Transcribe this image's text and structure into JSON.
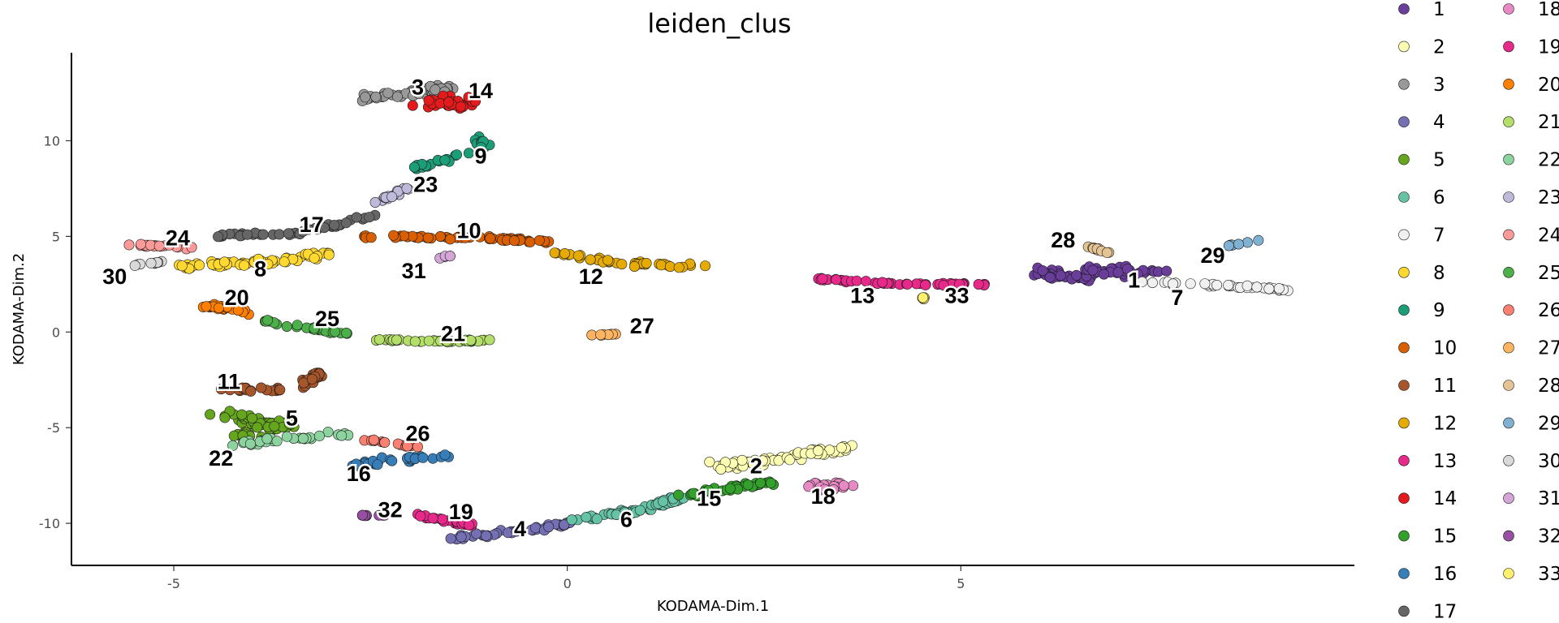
{
  "chart_data": {
    "type": "scatter",
    "title": "leiden_clus",
    "xlabel": "KODAMA-Dim.1",
    "ylabel": "KODAMA-Dim.2",
    "xlim": [
      -6.3,
      10.0
    ],
    "ylim": [
      -12.2,
      14.6
    ],
    "x_ticks": [
      -5,
      0,
      5
    ],
    "x_tick_labels": [
      "-5",
      "0",
      "5"
    ],
    "y_ticks": [
      -10,
      -5,
      0,
      5,
      10
    ],
    "y_tick_labels": [
      "-10",
      "-5",
      "0",
      "5",
      "10"
    ],
    "grid": false,
    "legend_position": "right",
    "clusters": [
      {
        "name": "1",
        "color": "#6a3d9a",
        "label_pos": [
          7.2,
          2.7
        ],
        "segments": [
          [
            6.0,
            3.1,
            6.6,
            2.8
          ],
          [
            6.6,
            3.2,
            7.5,
            3.2
          ]
        ],
        "spread": 0.35,
        "count": 80
      },
      {
        "name": "2",
        "color": "#ffffb3",
        "label_pos": [
          2.4,
          -7.0
        ],
        "segments": [
          [
            1.9,
            -7.0,
            2.8,
            -6.6
          ],
          [
            2.8,
            -6.6,
            3.6,
            -6.0
          ]
        ],
        "spread": 0.35,
        "count": 60
      },
      {
        "name": "3",
        "color": "#999999",
        "label_pos": [
          -1.9,
          12.8
        ],
        "segments": [
          [
            -2.6,
            12.2,
            -1.7,
            12.6
          ],
          [
            -1.7,
            12.6,
            -1.5,
            12.7
          ]
        ],
        "spread": 0.35,
        "count": 55
      },
      {
        "name": "4",
        "color": "#7570b3",
        "label_pos": [
          -0.6,
          -10.3
        ],
        "segments": [
          [
            -1.5,
            -10.8,
            -0.6,
            -10.4
          ],
          [
            -0.6,
            -10.4,
            0.1,
            -10.0
          ]
        ],
        "spread": 0.2,
        "count": 45
      },
      {
        "name": "5",
        "color": "#66a61e",
        "label_pos": [
          -3.5,
          -4.5
        ],
        "segments": [
          [
            -4.4,
            -4.2,
            -3.6,
            -5.0
          ],
          [
            -4.2,
            -5.5,
            -3.4,
            -4.6
          ]
        ],
        "spread": 0.35,
        "count": 60
      },
      {
        "name": "6",
        "color": "#66c2a5",
        "label_pos": [
          0.75,
          -9.8
        ],
        "segments": [
          [
            0.1,
            -9.8,
            0.9,
            -9.3
          ],
          [
            0.9,
            -9.3,
            1.5,
            -8.6
          ]
        ],
        "spread": 0.25,
        "count": 50
      },
      {
        "name": "7",
        "color": "#f0f0f0",
        "label_pos": [
          7.75,
          1.8
        ],
        "segments": [
          [
            7.3,
            2.6,
            8.5,
            2.4
          ],
          [
            8.5,
            2.4,
            9.1,
            2.2
          ]
        ],
        "spread": 0.12,
        "count": 35
      },
      {
        "name": "8",
        "color": "#ffd92f",
        "label_pos": [
          -3.9,
          3.3
        ],
        "segments": [
          [
            -4.9,
            3.4,
            -4.0,
            3.6
          ],
          [
            -4.0,
            3.6,
            -3.0,
            4.1
          ]
        ],
        "spread": 0.3,
        "count": 60
      },
      {
        "name": "9",
        "color": "#1b9e77",
        "label_pos": [
          -1.1,
          9.2
        ],
        "segments": [
          [
            -1.9,
            8.6,
            -1.1,
            9.6
          ],
          [
            -1.1,
            9.6,
            -1.1,
            10.2
          ]
        ],
        "spread": 0.25,
        "count": 35
      },
      {
        "name": "10",
        "color": "#d95f02",
        "label_pos": [
          -1.25,
          5.3
        ],
        "segments": [
          [
            -2.6,
            5.0,
            -1.0,
            4.9
          ],
          [
            -1.0,
            4.9,
            -0.2,
            4.7
          ]
        ],
        "spread": 0.15,
        "count": 60
      },
      {
        "name": "11",
        "color": "#a6562a",
        "label_pos": [
          -4.3,
          -2.6
        ],
        "segments": [
          [
            -4.4,
            -3.0,
            -3.4,
            -3.0
          ],
          [
            -3.4,
            -3.0,
            -3.1,
            -2.0
          ]
        ],
        "spread": 0.2,
        "count": 40
      },
      {
        "name": "12",
        "color": "#e6ab02",
        "label_pos": [
          0.3,
          2.9
        ],
        "segments": [
          [
            -0.2,
            4.2,
            0.6,
            3.6
          ],
          [
            0.6,
            3.6,
            1.7,
            3.4
          ]
        ],
        "spread": 0.2,
        "count": 40
      },
      {
        "name": "13",
        "color": "#e7298a",
        "label_pos": [
          3.75,
          1.9
        ],
        "segments": [
          [
            3.1,
            2.8,
            4.2,
            2.5
          ],
          [
            4.2,
            2.5,
            5.4,
            2.5
          ]
        ],
        "spread": 0.08,
        "count": 45
      },
      {
        "name": "14",
        "color": "#e41a1c",
        "label_pos": [
          -1.1,
          12.6
        ],
        "segments": [
          [
            -1.8,
            12.0,
            -1.2,
            12.0
          ]
        ],
        "spread": 0.45,
        "count": 40
      },
      {
        "name": "15",
        "color": "#33a02c",
        "label_pos": [
          1.8,
          -8.7
        ],
        "segments": [
          [
            1.4,
            -8.6,
            2.1,
            -8.1
          ],
          [
            2.1,
            -8.1,
            2.6,
            -7.9
          ]
        ],
        "spread": 0.2,
        "count": 35
      },
      {
        "name": "16",
        "color": "#377eb8",
        "label_pos": [
          -2.65,
          -7.4
        ],
        "segments": [
          [
            -2.8,
            -7.1,
            -2.3,
            -6.7
          ],
          [
            -2.3,
            -6.7,
            -1.5,
            -6.5
          ]
        ],
        "spread": 0.2,
        "count": 30
      },
      {
        "name": "17",
        "color": "#666666",
        "label_pos": [
          -3.25,
          5.6
        ],
        "segments": [
          [
            -4.5,
            5.0,
            -3.4,
            5.2
          ],
          [
            -3.4,
            5.2,
            -2.5,
            6.0
          ]
        ],
        "spread": 0.15,
        "count": 40
      },
      {
        "name": "18",
        "color": "#e78ac3",
        "label_pos": [
          3.25,
          -8.6
        ],
        "segments": [
          [
            3.1,
            -8.1,
            3.6,
            -8.0
          ]
        ],
        "spread": 0.3,
        "count": 25
      },
      {
        "name": "19",
        "color": "#e7298a",
        "label_pos": [
          -1.35,
          -9.4
        ],
        "segments": [
          [
            -1.9,
            -9.6,
            -1.2,
            -10.1
          ]
        ],
        "spread": 0.12,
        "count": 25
      },
      {
        "name": "20",
        "color": "#ff7f00",
        "label_pos": [
          -4.2,
          1.8
        ],
        "segments": [
          [
            -4.6,
            1.4,
            -4.0,
            1.0
          ]
        ],
        "spread": 0.2,
        "count": 25
      },
      {
        "name": "21",
        "color": "#b3de69",
        "label_pos": [
          -1.45,
          -0.1
        ],
        "segments": [
          [
            -2.6,
            -0.4,
            -1.6,
            -0.5
          ],
          [
            -1.6,
            -0.5,
            -1.0,
            -0.4
          ]
        ],
        "spread": 0.08,
        "count": 35
      },
      {
        "name": "22",
        "color": "#8dd3a0",
        "label_pos": [
          -4.4,
          -6.6
        ],
        "segments": [
          [
            -4.3,
            -5.9,
            -3.6,
            -5.6
          ],
          [
            -3.6,
            -5.6,
            -2.8,
            -5.3
          ]
        ],
        "spread": 0.2,
        "count": 30
      },
      {
        "name": "23",
        "color": "#bebada",
        "label_pos": [
          -1.8,
          7.7
        ],
        "segments": [
          [
            -2.4,
            6.8,
            -2.0,
            7.6
          ]
        ],
        "spread": 0.15,
        "count": 15
      },
      {
        "name": "24",
        "color": "#fb9a99",
        "label_pos": [
          -4.95,
          4.9
        ],
        "segments": [
          [
            -5.6,
            4.6,
            -4.8,
            4.4
          ]
        ],
        "spread": 0.12,
        "count": 20
      },
      {
        "name": "25",
        "color": "#4daf4a",
        "label_pos": [
          -3.05,
          0.7
        ],
        "segments": [
          [
            -3.9,
            0.6,
            -2.8,
            -0.1
          ]
        ],
        "spread": 0.15,
        "count": 25
      },
      {
        "name": "26",
        "color": "#fb8072",
        "label_pos": [
          -1.9,
          -5.3
        ],
        "segments": [
          [
            -2.6,
            -5.6,
            -1.9,
            -6.0
          ]
        ],
        "spread": 0.1,
        "count": 20
      },
      {
        "name": "27",
        "color": "#fdb462",
        "label_pos": [
          0.95,
          0.3
        ],
        "segments": [
          [
            0.3,
            -0.2,
            0.7,
            -0.1
          ]
        ],
        "spread": 0.06,
        "count": 8
      },
      {
        "name": "28",
        "color": "#e5c494",
        "label_pos": [
          6.3,
          4.8
        ],
        "segments": [
          [
            6.5,
            4.6,
            6.9,
            4.1
          ]
        ],
        "spread": 0.08,
        "count": 12
      },
      {
        "name": "29",
        "color": "#80b1d3",
        "label_pos": [
          8.2,
          4.0
        ],
        "segments": [
          [
            8.4,
            4.5,
            8.8,
            4.8
          ]
        ],
        "spread": 0.05,
        "count": 8
      },
      {
        "name": "30",
        "color": "#d9d9d9",
        "label_pos": [
          -5.75,
          2.9
        ],
        "segments": [
          [
            -5.5,
            3.5,
            -5.1,
            3.7
          ]
        ],
        "spread": 0.08,
        "count": 10
      },
      {
        "name": "31",
        "color": "#d4a6d8",
        "label_pos": [
          -1.95,
          3.2
        ],
        "segments": [
          [
            -1.7,
            3.8,
            -1.5,
            4.0
          ]
        ],
        "spread": 0.08,
        "count": 5
      },
      {
        "name": "32",
        "color": "#984ea3",
        "label_pos": [
          -2.25,
          -9.3
        ],
        "segments": [
          [
            -2.6,
            -9.6,
            -2.3,
            -9.6
          ]
        ],
        "spread": 0.05,
        "count": 8
      },
      {
        "name": "33",
        "color": "#fff06e",
        "label_pos": [
          4.95,
          1.9
        ],
        "segments": [
          [
            4.5,
            1.8,
            4.7,
            1.6
          ]
        ],
        "spread": 0.05,
        "count": 4
      }
    ]
  }
}
